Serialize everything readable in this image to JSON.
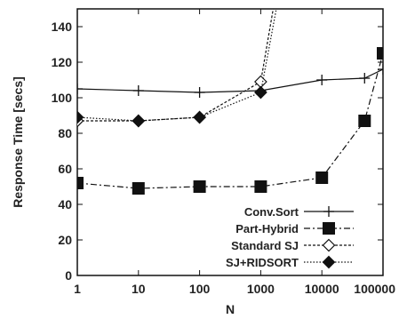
{
  "chart_data": {
    "type": "line",
    "title": "",
    "xlabel": "N",
    "ylabel": "Response Time [secs]",
    "xscale": "log",
    "xlim": [
      1,
      100000
    ],
    "ylim": [
      0,
      150
    ],
    "x_ticks": [
      1,
      10,
      100,
      1000,
      10000,
      100000
    ],
    "x_tick_labels": [
      "1",
      "10",
      "100",
      "1000",
      "10000",
      "100000"
    ],
    "y_ticks": [
      0,
      20,
      40,
      60,
      80,
      100,
      120,
      140
    ],
    "y_tick_labels": [
      "0",
      "20",
      "40",
      "60",
      "80",
      "100",
      "120",
      "140"
    ],
    "grid": false,
    "legend_position": "bottom-right",
    "series": [
      {
        "name": "Conv.Sort",
        "marker": "plus",
        "line": "solid",
        "x": [
          1,
          10,
          100,
          1000,
          10000,
          50000,
          100000
        ],
        "y": [
          105,
          104,
          103,
          104,
          110,
          111,
          116
        ]
      },
      {
        "name": "Part-Hybrid",
        "marker": "filled-square",
        "line": "dash-dot",
        "x": [
          1,
          10,
          100,
          1000,
          10000,
          50000,
          100000
        ],
        "y": [
          52,
          49,
          50,
          50,
          55,
          87,
          125
        ]
      },
      {
        "name": "Standard SJ",
        "marker": "open-diamond",
        "line": "dotted",
        "x": [
          1,
          10,
          100,
          1000,
          1600
        ],
        "y": [
          87,
          87,
          89,
          109,
          150
        ]
      },
      {
        "name": "SJ+RIDSORT",
        "marker": "filled-diamond",
        "line": "fine-dotted",
        "x": [
          1,
          10,
          100,
          1000,
          1800
        ],
        "y": [
          89,
          87,
          89,
          103,
          150
        ]
      }
    ]
  }
}
